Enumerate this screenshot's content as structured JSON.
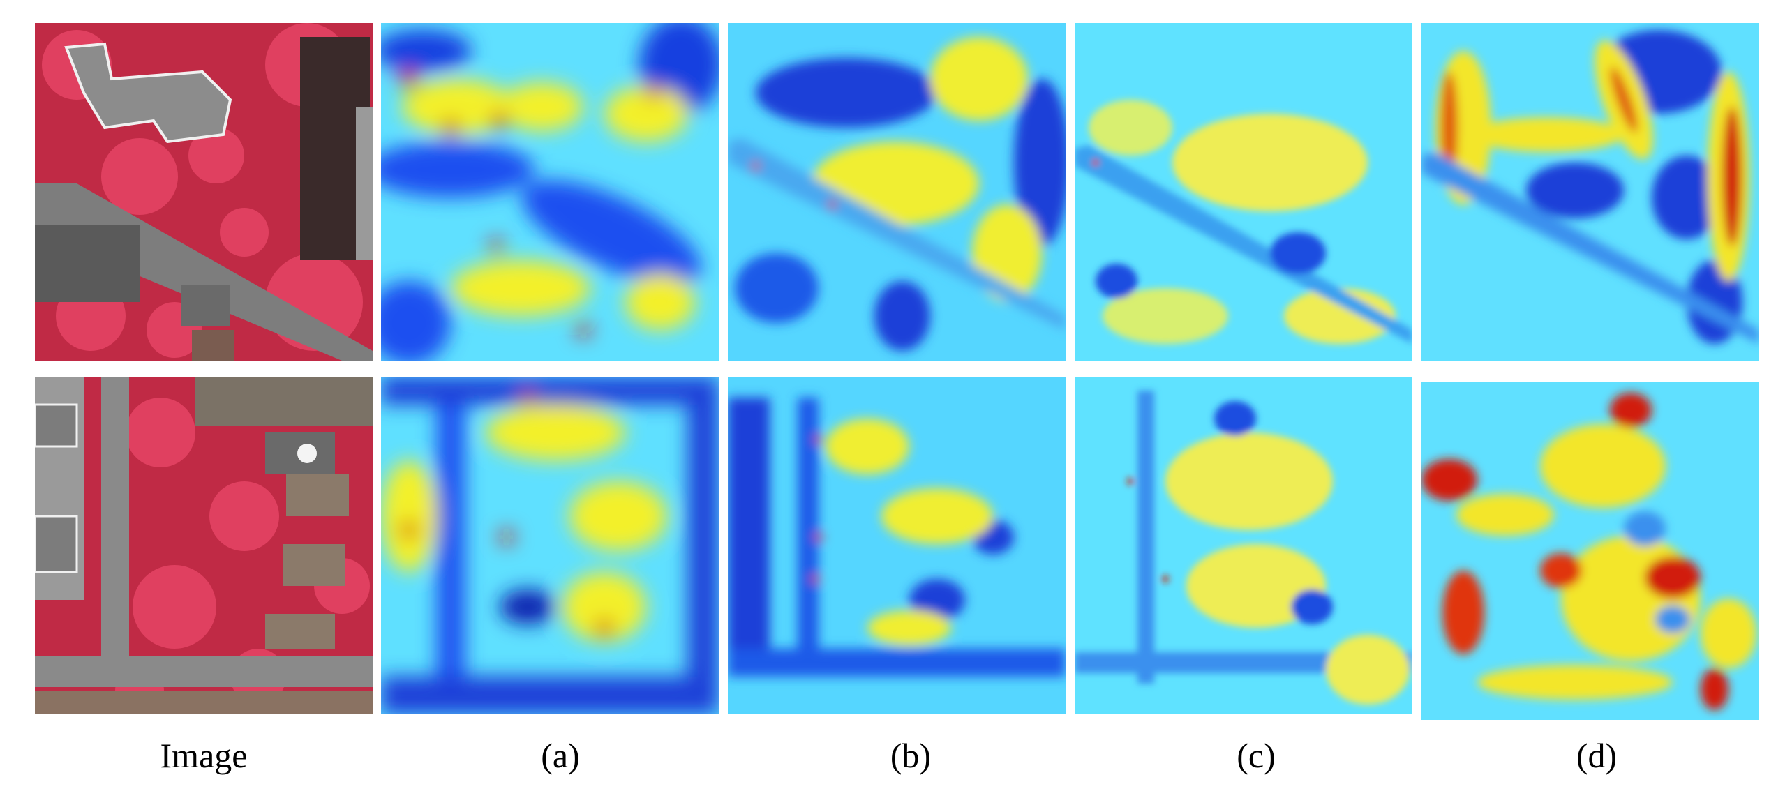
{
  "figure": {
    "captions": [
      "Image",
      "(a)",
      "(b)",
      "(c)",
      "(d)"
    ],
    "rows": [
      {
        "content": "aerial-image-top"
      },
      {
        "content": "aerial-image-bottom"
      }
    ],
    "colors": {
      "background": "#ffffff",
      "infrared_vegetation": "#e0354f",
      "roof_gray": "#8c8c8c",
      "road_gray": "#7d7d7d",
      "heat_low": "#0a1fd0",
      "heat_mid": "#3ee6ff",
      "heat_high_yellow": "#f3f02a",
      "heat_peak": "#d11a10"
    }
  }
}
